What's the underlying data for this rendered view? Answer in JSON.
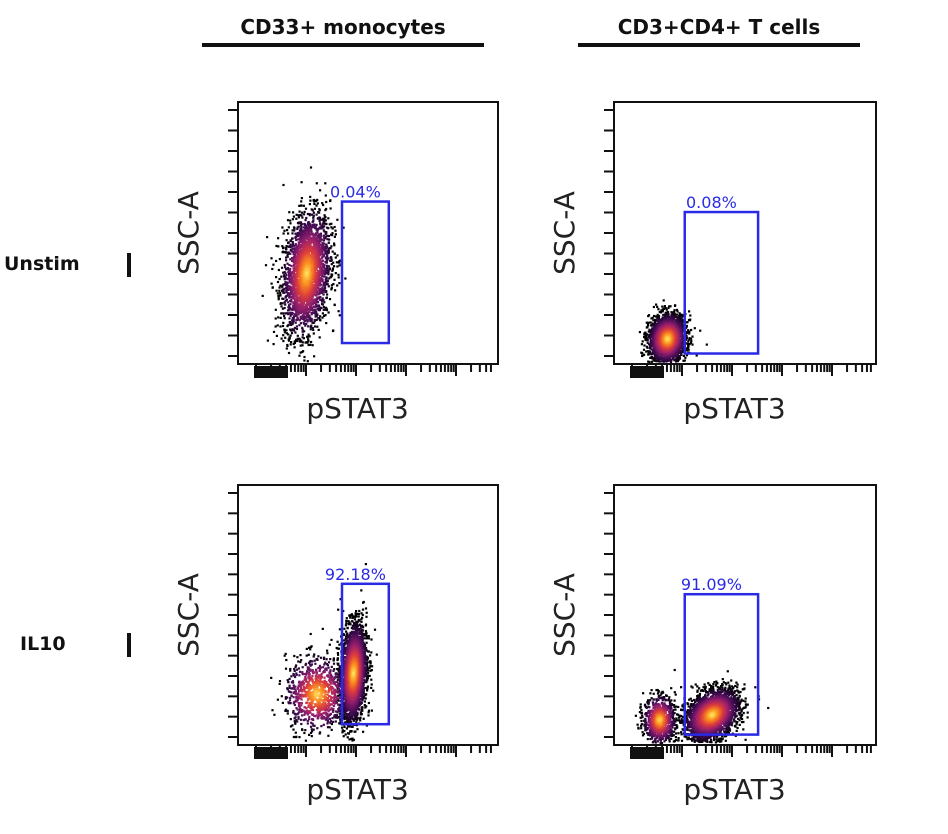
{
  "columns": [
    {
      "title": "CD33+ monocytes"
    },
    {
      "title": "CD3+CD4+ T cells"
    }
  ],
  "rows": [
    {
      "label": "Unstim"
    },
    {
      "label": "IL10"
    }
  ],
  "colors": {
    "gate": "#2a2ae6",
    "density_low": "#000000",
    "density_mid": "#8a1f6a",
    "density_high": "#ffd24a"
  },
  "chart_data": [
    {
      "type": "scatter",
      "panel": "Unstim / CD33+ monocytes",
      "xlabel": "pSTAT3",
      "ylabel": "SSC-A",
      "gate": {
        "percent": "0.04%",
        "x_range": [
          0.4,
          0.58
        ],
        "y_range": [
          0.08,
          0.62
        ]
      },
      "populations": [
        {
          "cx": 0.26,
          "cy": 0.35,
          "sx": 0.045,
          "sy": 0.11,
          "n": 2600,
          "tilt": 0.25
        }
      ]
    },
    {
      "type": "scatter",
      "panel": "Unstim / CD3+CD4+ T cells",
      "xlabel": "pSTAT3",
      "ylabel": "SSC-A",
      "gate": {
        "percent": "0.08%",
        "x_range": [
          0.27,
          0.55
        ],
        "y_range": [
          0.04,
          0.58
        ]
      },
      "populations": [
        {
          "cx": 0.2,
          "cy": 0.1,
          "sx": 0.035,
          "sy": 0.045,
          "n": 2200,
          "tilt": 0.1
        }
      ]
    },
    {
      "type": "scatter",
      "panel": "IL10 / CD33+ monocytes",
      "xlabel": "pSTAT3",
      "ylabel": "SSC-A",
      "gate": {
        "percent": "92.18%",
        "x_range": [
          0.4,
          0.58
        ],
        "y_range": [
          0.08,
          0.62
        ]
      },
      "populations": [
        {
          "cx": 0.44,
          "cy": 0.28,
          "sx": 0.025,
          "sy": 0.09,
          "n": 2600,
          "tilt": 0.2
        },
        {
          "cx": 0.3,
          "cy": 0.2,
          "sx": 0.06,
          "sy": 0.07,
          "n": 900,
          "tilt": 0.0
        }
      ]
    },
    {
      "type": "scatter",
      "panel": "IL10 / CD3+CD4+ T cells",
      "xlabel": "pSTAT3",
      "ylabel": "SSC-A",
      "gate": {
        "percent": "91.09%",
        "x_range": [
          0.27,
          0.55
        ],
        "y_range": [
          0.04,
          0.58
        ]
      },
      "populations": [
        {
          "cx": 0.37,
          "cy": 0.12,
          "sx": 0.05,
          "sy": 0.045,
          "n": 2600,
          "tilt": 0.35
        },
        {
          "cx": 0.17,
          "cy": 0.1,
          "sx": 0.03,
          "sy": 0.045,
          "n": 800,
          "tilt": 0.0
        }
      ]
    }
  ]
}
